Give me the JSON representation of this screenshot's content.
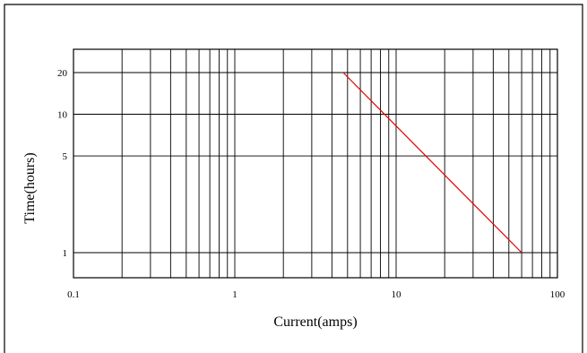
{
  "chart_data": {
    "type": "line",
    "title": "",
    "xlabel": "Current(amps)",
    "ylabel": "Time(hours)",
    "xscale": "log",
    "yscale": "log",
    "xlim": [
      0.1,
      100
    ],
    "ylim": [
      0.5,
      30
    ],
    "grid": true,
    "x_ticks": [
      0.1,
      1,
      10,
      100
    ],
    "x_tick_labels": [
      "0.1",
      "1",
      "10",
      "100"
    ],
    "y_ticks": [
      1,
      5,
      10,
      20
    ],
    "y_tick_labels": [
      "1",
      "5",
      "10",
      "20"
    ],
    "series": [
      {
        "color": "#e00000",
        "x": [
          4.7,
          60
        ],
        "y": [
          20,
          1
        ]
      }
    ]
  }
}
